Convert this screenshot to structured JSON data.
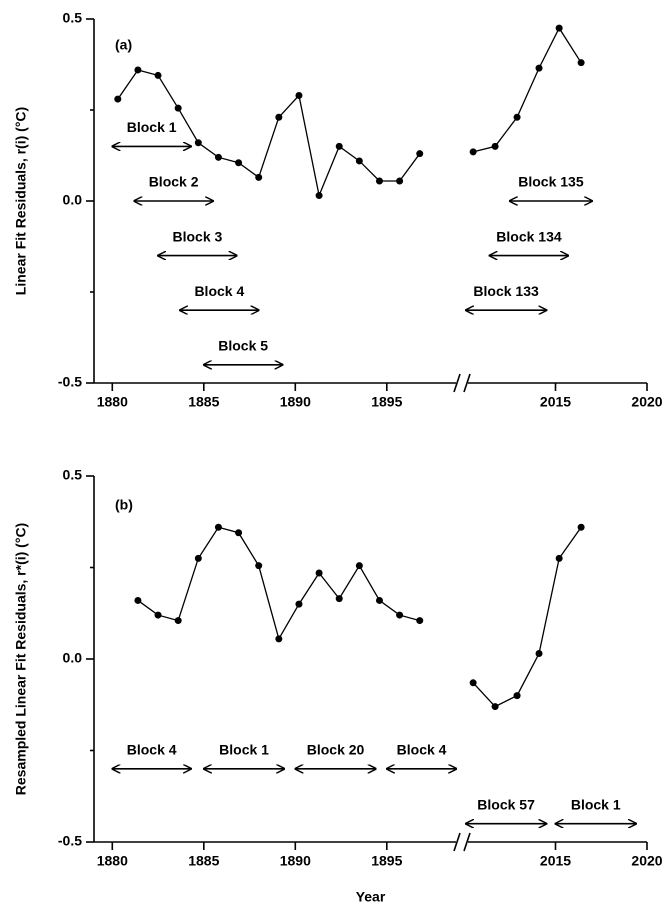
{
  "chart_data": [
    {
      "type": "line",
      "label": "(a)",
      "ylabel": "Linear Fit Residuals, r(i) (°C)",
      "xlim": [
        1879,
        2020
      ],
      "x_break": [
        1899,
        2010
      ],
      "xticks": [
        1880,
        1885,
        1890,
        1895,
        2015,
        2020
      ],
      "ylim": [
        -0.5,
        0.5
      ],
      "yticks": [
        -0.5,
        {
          "value": 0,
          "label": "0.0"
        },
        0.5
      ],
      "yminor": [
        -0.25,
        0.25
      ],
      "series": [
        {
          "color": "#000000",
          "x": [
            1880.3,
            1881.4,
            1882.5,
            1883.6,
            1884.7,
            1885.8,
            1886.9,
            1888.0,
            1889.1,
            1890.2,
            1891.3,
            1892.4,
            1893.5,
            1894.6,
            1895.7,
            1896.8
          ],
          "values": [
            0.28,
            0.36,
            0.345,
            0.255,
            0.16,
            0.12,
            0.105,
            0.065,
            0.23,
            0.29,
            0.015,
            0.15,
            0.11,
            0.055,
            0.055,
            0.13
          ]
        },
        {
          "color": "#000000",
          "x": [
            2010.5,
            2011.7,
            2012.9,
            2014.1,
            2015.2,
            2016.4
          ],
          "values": [
            0.135,
            0.15,
            0.23,
            0.365,
            0.475,
            0.38
          ]
        }
      ],
      "annotations": [
        {
          "text": "Block 1",
          "x": [
            1880,
            1884.3
          ],
          "y": 0.15
        },
        {
          "text": "Block 2",
          "x": [
            1881.2,
            1885.5
          ],
          "y": 0
        },
        {
          "text": "Block 3",
          "x": [
            1882.5,
            1886.8
          ],
          "y": -0.15
        },
        {
          "text": "Block 4",
          "x": [
            1883.7,
            1888.0
          ],
          "y": -0.3
        },
        {
          "text": "Block 5",
          "x": [
            1885.0,
            1889.3
          ],
          "y": -0.45
        },
        {
          "text": "Block 135",
          "x": [
            2012.5,
            2017.0
          ],
          "y": 0
        },
        {
          "text": "Block 134",
          "x": [
            2011.4,
            2015.7
          ],
          "y": -0.15
        },
        {
          "text": "Block 133",
          "x": [
            2010.1,
            2014.5
          ],
          "y": -0.3
        }
      ]
    },
    {
      "type": "line",
      "label": "(b)",
      "ylabel": "Resampled Linear Fit Residuals, r*(i) (°C)",
      "xlabel": "Year",
      "xlim": [
        1879,
        2020
      ],
      "x_break": [
        1899,
        2010
      ],
      "xticks": [
        1880,
        1885,
        1890,
        1895,
        2015,
        2020
      ],
      "ylim": [
        -0.5,
        0.5
      ],
      "yticks": [
        -0.5,
        {
          "value": 0,
          "label": "0.0"
        },
        0.5
      ],
      "yminor": [
        -0.25,
        0.25
      ],
      "series": [
        {
          "color": "#000000",
          "x": [
            1881.4,
            1882.5,
            1883.6,
            1884.7,
            1885.8,
            1886.9,
            1888.0,
            1889.1,
            1890.2,
            1891.3,
            1892.4,
            1893.5,
            1894.6,
            1895.7,
            1896.8
          ],
          "values": [
            0.16,
            0.12,
            0.105,
            0.275,
            0.36,
            0.345,
            0.255,
            0.055,
            0.15,
            0.235,
            0.165,
            0.255,
            0.16,
            0.12,
            0.105
          ]
        },
        {
          "color": "#000000",
          "x": [
            2010.5,
            2011.7,
            2012.9,
            2014.1,
            2015.2,
            2016.4
          ],
          "values": [
            -0.065,
            -0.13,
            -0.1,
            0.015,
            0.275,
            0.36
          ]
        }
      ],
      "annotations": [
        {
          "text": "Block 4",
          "x": [
            1880,
            1884.3
          ],
          "y": -0.3
        },
        {
          "text": "Block 1",
          "x": [
            1885.0,
            1889.4
          ],
          "y": -0.3
        },
        {
          "text": "Block 20",
          "x": [
            1890.0,
            1894.4
          ],
          "y": -0.3
        },
        {
          "text": "Block 4",
          "x": [
            1895.0,
            1898.8
          ],
          "y": -0.3
        },
        {
          "text": "Block 57",
          "x": [
            2010.1,
            2014.5
          ],
          "y": -0.45
        },
        {
          "text": "Block 1",
          "x": [
            2015.0,
            2019.4
          ],
          "y": -0.45
        }
      ]
    }
  ]
}
